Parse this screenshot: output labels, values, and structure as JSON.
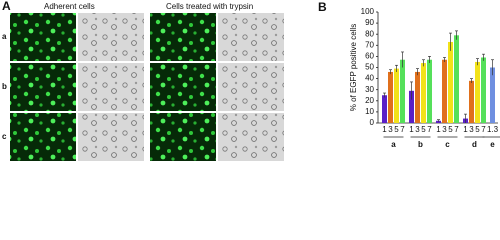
{
  "panel_a": {
    "label": "A",
    "header_left": "Adherent cells",
    "header_right": "Cells treated with trypsin",
    "rows": [
      "a",
      "b",
      "c"
    ]
  },
  "chart_data": {
    "type": "bar",
    "panel_label": "B",
    "ylabel": "% of EGFP positive cells",
    "ylim": [
      0,
      100
    ],
    "yticks": [
      0,
      10,
      20,
      30,
      40,
      50,
      60,
      70,
      80,
      90,
      100
    ],
    "groups": [
      {
        "name": "a",
        "bars": [
          {
            "label": "1",
            "value": 25,
            "error": 2,
            "color": "#5b1fc8"
          },
          {
            "label": "3",
            "value": 46,
            "error": 2,
            "color": "#e0701c"
          },
          {
            "label": "5",
            "value": 49,
            "error": 3,
            "color": "#f2e21a"
          },
          {
            "label": "7",
            "value": 57,
            "error": 7,
            "color": "#55e05a"
          }
        ]
      },
      {
        "name": "b",
        "bars": [
          {
            "label": "1",
            "value": 29,
            "error": 8,
            "color": "#5b1fc8"
          },
          {
            "label": "3",
            "value": 46,
            "error": 3,
            "color": "#e0701c"
          },
          {
            "label": "5",
            "value": 54,
            "error": 3,
            "color": "#f2e21a"
          },
          {
            "label": "7",
            "value": 57,
            "error": 3,
            "color": "#55e05a"
          }
        ]
      },
      {
        "name": "c",
        "bars": [
          {
            "label": "1",
            "value": 2,
            "error": 1,
            "color": "#5b1fc8"
          },
          {
            "label": "3",
            "value": 57,
            "error": 2,
            "color": "#e0701c"
          },
          {
            "label": "5",
            "value": 73,
            "error": 8,
            "color": "#f2e21a"
          },
          {
            "label": "7",
            "value": 79,
            "error": 4,
            "color": "#55e05a"
          }
        ]
      },
      {
        "name": "d",
        "bars": [
          {
            "label": "1",
            "value": 4,
            "error": 4,
            "color": "#5b1fc8"
          },
          {
            "label": "3",
            "value": 38,
            "error": 2,
            "color": "#e0701c"
          },
          {
            "label": "5",
            "value": 55,
            "error": 3,
            "color": "#f2e21a"
          },
          {
            "label": "7",
            "value": 59,
            "error": 3,
            "color": "#55e05a"
          }
        ]
      },
      {
        "name": "e",
        "bars": [
          {
            "label": "1.3",
            "value": 50,
            "error": 7,
            "color": "#6f8fe0"
          }
        ]
      }
    ]
  }
}
